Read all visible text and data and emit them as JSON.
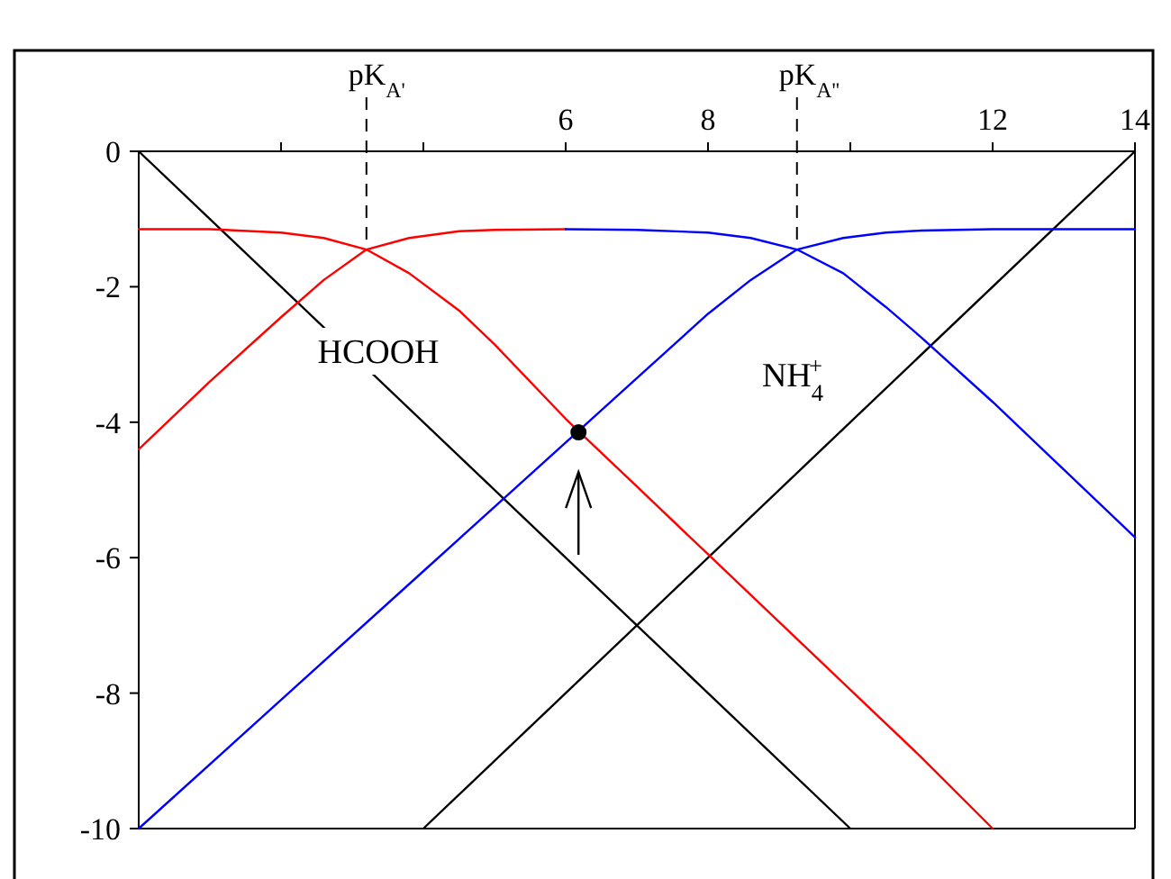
{
  "chart_data": {
    "type": "line",
    "xlim": [
      0,
      14
    ],
    "ylim": [
      -10,
      0
    ],
    "xticks": [
      {
        "value": 2,
        "label": null
      },
      {
        "value": 4,
        "label": null
      },
      6,
      8,
      {
        "value": 10,
        "label": null
      },
      12,
      14
    ],
    "yticks": [
      0,
      -2,
      -4,
      -6,
      -8,
      -10
    ],
    "grid": false,
    "marker": "none",
    "line_style": "solid",
    "series": [
      {
        "color": "#000000",
        "x": [
          0,
          10
        ],
        "values": [
          0,
          -10
        ]
      },
      {
        "color": "#000000",
        "x": [
          4,
          14
        ],
        "values": [
          -10,
          0
        ]
      },
      {
        "color": "#ff0000",
        "x": [
          0,
          1,
          2,
          2.6,
          3.2,
          3.8,
          4.5,
          5,
          6,
          7,
          8,
          9,
          10,
          11,
          12
        ],
        "values": [
          -1.15,
          -1.15,
          -1.2,
          -1.28,
          -1.45,
          -1.8,
          -2.35,
          -2.85,
          -3.95,
          -4.95,
          -5.95,
          -6.95,
          -7.95,
          -8.95,
          -10
        ]
      },
      {
        "color": "#ff0000",
        "x": [
          0,
          1,
          2,
          2.6,
          3.2,
          3.8,
          4.5,
          5,
          6
        ],
        "values": [
          -4.4,
          -3.4,
          -2.45,
          -1.9,
          -1.45,
          -1.28,
          -1.18,
          -1.16,
          -1.15
        ]
      },
      {
        "color": "#0000ff",
        "x": [
          6,
          7,
          8,
          8.6,
          9.25,
          9.9,
          10.5,
          11,
          12,
          13,
          14
        ],
        "values": [
          -1.15,
          -1.16,
          -1.2,
          -1.28,
          -1.45,
          -1.8,
          -2.3,
          -2.75,
          -3.7,
          -4.7,
          -5.7
        ]
      },
      {
        "color": "#0000ff",
        "x": [
          0,
          2,
          4,
          6,
          7,
          8,
          8.6,
          9.25,
          9.9,
          10.5,
          11,
          12,
          14
        ],
        "values": [
          -10,
          -8.1,
          -6.2,
          -4.3,
          -3.35,
          -2.4,
          -1.9,
          -1.45,
          -1.28,
          -1.2,
          -1.17,
          -1.15,
          -1.15
        ]
      },
      {
        "type": "scatter",
        "color": "#000000",
        "marker": "circle",
        "x": [
          6.18
        ],
        "values": [
          -4.15
        ]
      }
    ],
    "ref_lines": [
      {
        "axis": "x",
        "value": 3.2,
        "label": "pK$_{A'}$",
        "line_style": "dashed",
        "color": "#000000"
      },
      {
        "axis": "x",
        "value": 9.25,
        "label": "pK$_{A''}$",
        "line_style": "dashed",
        "color": "#000000"
      }
    ],
    "annotations": [
      "HCOOH",
      "NH$_{4}$$^{+}$"
    ]
  }
}
